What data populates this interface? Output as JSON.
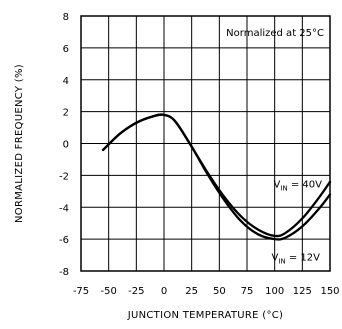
{
  "chart_data": {
    "type": "line",
    "title": "",
    "xlabel": "JUNCTION TEMPERATURE (°C)",
    "ylabel": "NORMALIZED FREQUENCY (%)",
    "xlim": [
      -75,
      150
    ],
    "ylim": [
      -8,
      8
    ],
    "xticks": [
      -75,
      -50,
      -25,
      0,
      25,
      50,
      75,
      100,
      125,
      150
    ],
    "xtick_labels": [
      "-75",
      "-50",
      "-25",
      "0",
      "25",
      "50",
      "75",
      "100",
      "125",
      "150"
    ],
    "yticks": [
      -8,
      -6,
      -4,
      -2,
      0,
      2,
      4,
      6,
      8
    ],
    "ytick_labels": [
      "-8",
      "-6",
      "-4",
      "-2",
      "0",
      "2",
      "4",
      "6",
      "8"
    ],
    "grid": true,
    "annotation": "Normalized at 25°C",
    "series": [
      {
        "name": "VIN = 40V",
        "label_main": "V",
        "label_sub": "IN",
        "label_rest": " = 40V",
        "x": [
          -55,
          -40,
          -25,
          -10,
          0,
          10,
          25,
          40,
          55,
          70,
          85,
          100,
          110,
          125,
          140,
          150
        ],
        "y": [
          -0.4,
          0.6,
          1.3,
          1.7,
          1.8,
          1.4,
          -0.2,
          -1.9,
          -3.4,
          -4.6,
          -5.4,
          -5.8,
          -5.6,
          -4.7,
          -3.4,
          -2.4
        ]
      },
      {
        "name": "VIN = 12V",
        "label_main": "V",
        "label_sub": "IN",
        "label_rest": " = 12V",
        "x": [
          -55,
          -40,
          -25,
          -10,
          0,
          10,
          25,
          40,
          55,
          70,
          85,
          100,
          110,
          125,
          140,
          150
        ],
        "y": [
          -0.4,
          0.6,
          1.3,
          1.7,
          1.8,
          1.4,
          -0.2,
          -2.0,
          -3.6,
          -4.9,
          -5.7,
          -6.0,
          -5.9,
          -5.2,
          -4.1,
          -3.2
        ]
      }
    ]
  }
}
